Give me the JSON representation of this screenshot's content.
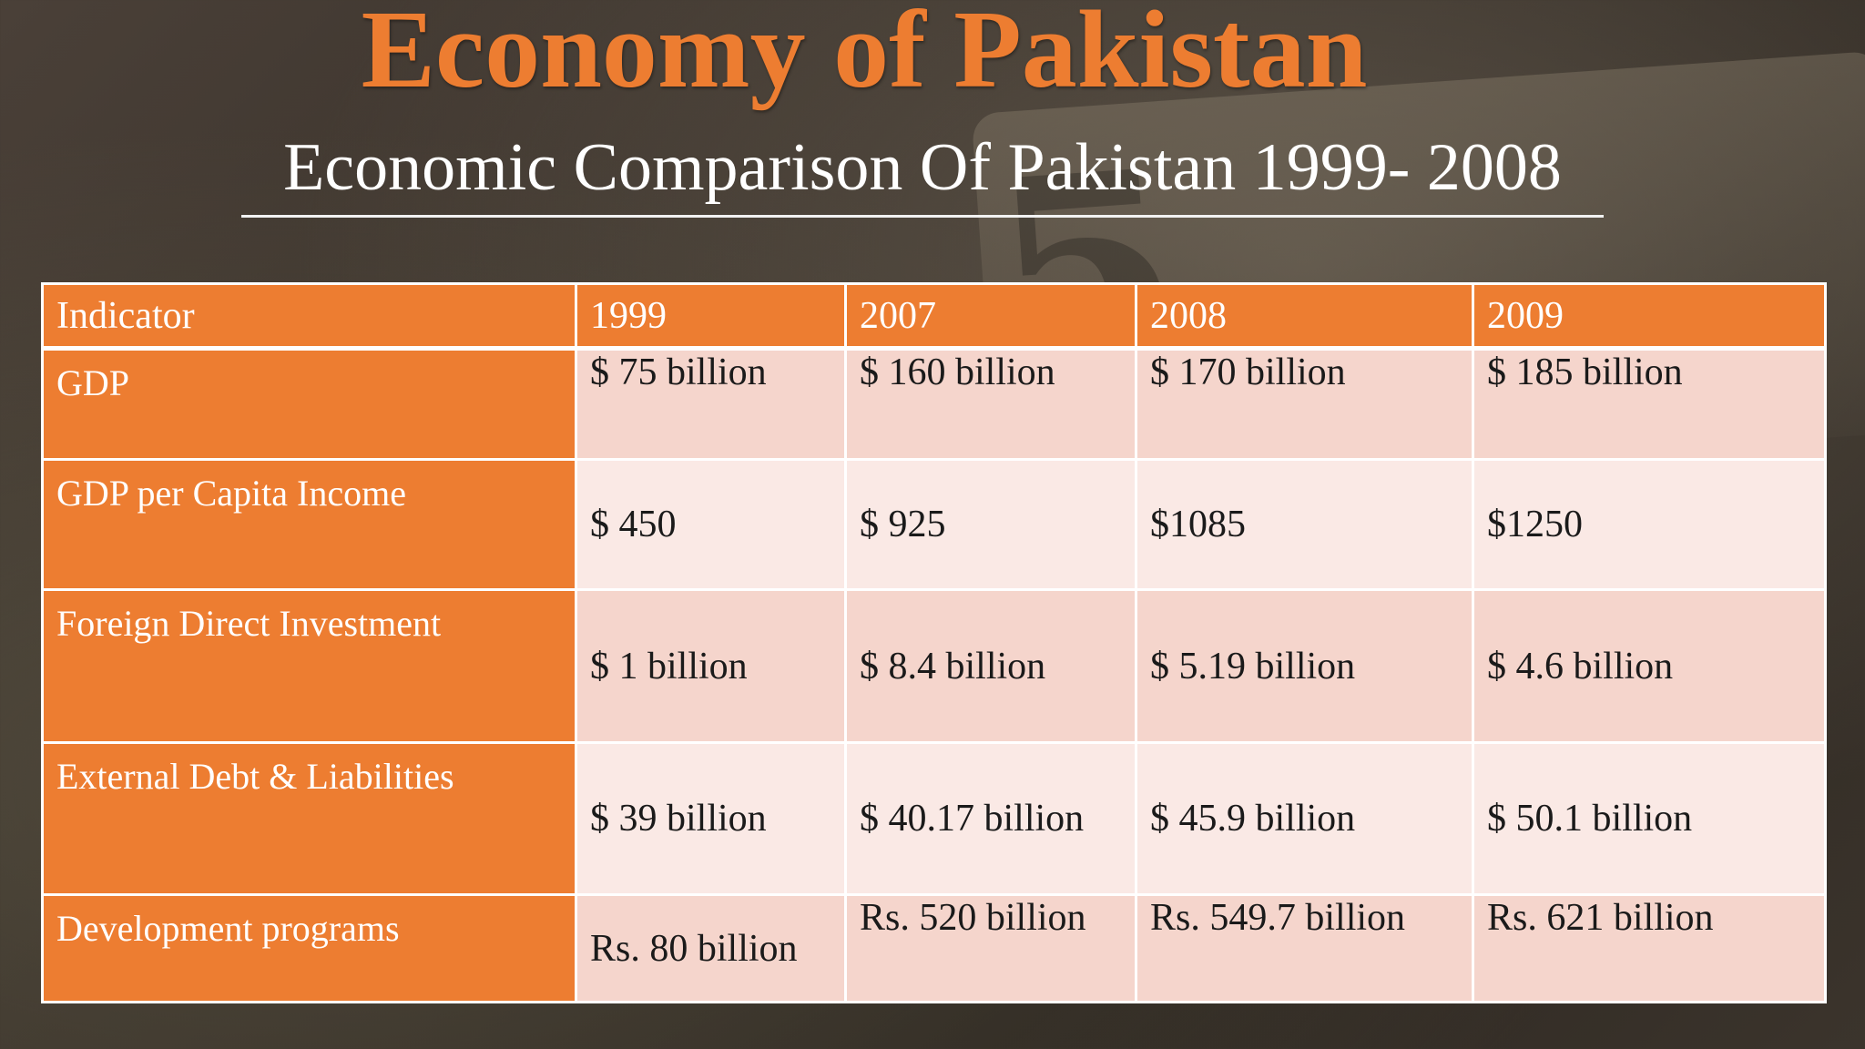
{
  "title": "Economy of Pakistan",
  "subtitle": "Economic Comparison Of Pakistan 1999- 2008",
  "table": {
    "headers": [
      "Indicator",
      "1999",
      "2007",
      "2008",
      "2009"
    ],
    "rows": [
      {
        "indicator": "GDP",
        "values": [
          "$ 75 billion",
          "$ 160 billion",
          "$ 170 billion",
          "$ 185 billion"
        ]
      },
      {
        "indicator": "GDP per Capita Income",
        "values": [
          "$ 450",
          "$ 925",
          "$1085",
          "$1250"
        ]
      },
      {
        "indicator": "Foreign Direct Investment",
        "values": [
          "$ 1 billion",
          "$ 8.4 billion",
          "$ 5.19 billion",
          "$ 4.6 billion"
        ]
      },
      {
        "indicator": "External Debt & Liabilities",
        "values": [
          "$ 39 billion",
          "$ 40.17 billion",
          "$ 45.9 billion",
          "$ 50.1 billion"
        ]
      },
      {
        "indicator": "Development programs",
        "values": [
          "Rs. 80 billion",
          "Rs. 520 billion",
          "Rs. 549.7 billion",
          "Rs. 621 billion"
        ]
      }
    ]
  },
  "colors": {
    "accent": "#ed7d31",
    "row_dark": "#f5d5cc",
    "row_light": "#fae9e5"
  }
}
